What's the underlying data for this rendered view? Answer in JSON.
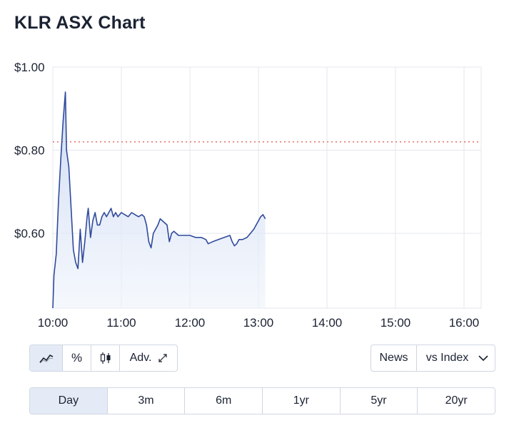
{
  "page": {
    "title": "KLR ASX Chart"
  },
  "chart_data": {
    "type": "area",
    "title": "KLR ASX Chart",
    "x_ticks": [
      "10:00",
      "11:00",
      "12:00",
      "13:00",
      "14:00",
      "15:00",
      "16:00"
    ],
    "y_ticks": [
      {
        "value": 1.0,
        "label": "$1.00"
      },
      {
        "value": 0.8,
        "label": "$0.80"
      },
      {
        "value": 0.6,
        "label": "$0.60"
      }
    ],
    "xlim": [
      "10:00",
      "16:15"
    ],
    "ylim": [
      0.42,
      1.0
    ],
    "reference_line": {
      "value": 0.82,
      "style": "dotted",
      "color": "#e0534a"
    },
    "series": [
      {
        "color": "#2f4a9c",
        "fill": "#dbe5f7",
        "points": [
          [
            "10:00",
            0.42
          ],
          [
            "10:01",
            0.5
          ],
          [
            "10:03",
            0.55
          ],
          [
            "10:05",
            0.68
          ],
          [
            "10:07",
            0.78
          ],
          [
            "10:09",
            0.87
          ],
          [
            "10:11",
            0.94
          ],
          [
            "10:12",
            0.8
          ],
          [
            "10:14",
            0.76
          ],
          [
            "10:16",
            0.66
          ],
          [
            "10:18",
            0.56
          ],
          [
            "10:20",
            0.53
          ],
          [
            "10:22",
            0.515
          ],
          [
            "10:24",
            0.61
          ],
          [
            "10:26",
            0.53
          ],
          [
            "10:28",
            0.58
          ],
          [
            "10:30",
            0.64
          ],
          [
            "10:31",
            0.66
          ],
          [
            "10:33",
            0.59
          ],
          [
            "10:35",
            0.63
          ],
          [
            "10:37",
            0.65
          ],
          [
            "10:39",
            0.62
          ],
          [
            "10:41",
            0.62
          ],
          [
            "10:43",
            0.64
          ],
          [
            "10:45",
            0.65
          ],
          [
            "10:47",
            0.64
          ],
          [
            "10:49",
            0.65
          ],
          [
            "10:51",
            0.66
          ],
          [
            "10:53",
            0.64
          ],
          [
            "10:55",
            0.65
          ],
          [
            "10:57",
            0.64
          ],
          [
            "11:00",
            0.65
          ],
          [
            "11:03",
            0.645
          ],
          [
            "11:06",
            0.64
          ],
          [
            "11:09",
            0.65
          ],
          [
            "11:12",
            0.645
          ],
          [
            "11:15",
            0.64
          ],
          [
            "11:18",
            0.645
          ],
          [
            "11:20",
            0.64
          ],
          [
            "11:22",
            0.62
          ],
          [
            "11:24",
            0.58
          ],
          [
            "11:26",
            0.565
          ],
          [
            "11:28",
            0.6
          ],
          [
            "11:30",
            0.61
          ],
          [
            "11:32",
            0.62
          ],
          [
            "11:34",
            0.635
          ],
          [
            "11:36",
            0.63
          ],
          [
            "11:38",
            0.625
          ],
          [
            "11:40",
            0.62
          ],
          [
            "11:42",
            0.58
          ],
          [
            "11:44",
            0.6
          ],
          [
            "11:46",
            0.605
          ],
          [
            "11:48",
            0.6
          ],
          [
            "11:50",
            0.595
          ],
          [
            "11:55",
            0.595
          ],
          [
            "12:00",
            0.595
          ],
          [
            "12:05",
            0.59
          ],
          [
            "12:10",
            0.59
          ],
          [
            "12:14",
            0.585
          ],
          [
            "12:16",
            0.575
          ],
          [
            "12:20",
            0.58
          ],
          [
            "12:25",
            0.585
          ],
          [
            "12:30",
            0.59
          ],
          [
            "12:35",
            0.595
          ],
          [
            "12:37",
            0.58
          ],
          [
            "12:39",
            0.57
          ],
          [
            "12:41",
            0.575
          ],
          [
            "12:43",
            0.585
          ],
          [
            "12:46",
            0.585
          ],
          [
            "12:50",
            0.59
          ],
          [
            "12:53",
            0.6
          ],
          [
            "12:56",
            0.61
          ],
          [
            "12:58",
            0.62
          ],
          [
            "13:00",
            0.63
          ],
          [
            "13:02",
            0.64
          ],
          [
            "13:04",
            0.645
          ],
          [
            "13:06",
            0.635
          ]
        ]
      }
    ],
    "grid": true
  },
  "toolbar": {
    "line_icon": "line-chart-icon",
    "percent_label": "%",
    "candle_icon": "candlestick-icon",
    "adv_label": "Adv.",
    "expand_icon": "expand-icon"
  },
  "right_tools": {
    "news_label": "News",
    "index_label": "vs Index",
    "index_icon": "chevron-down-icon"
  },
  "periods": [
    {
      "label": "Day",
      "active": true
    },
    {
      "label": "3m",
      "active": false
    },
    {
      "label": "6m",
      "active": false
    },
    {
      "label": "1yr",
      "active": false
    },
    {
      "label": "5yr",
      "active": false
    },
    {
      "label": "20yr",
      "active": false
    }
  ],
  "colors": {
    "accent": "#2f4a9c",
    "area_fill": "#dbe5f7",
    "grid": "#e3e7ee",
    "active_bg": "#e4ebf6"
  }
}
